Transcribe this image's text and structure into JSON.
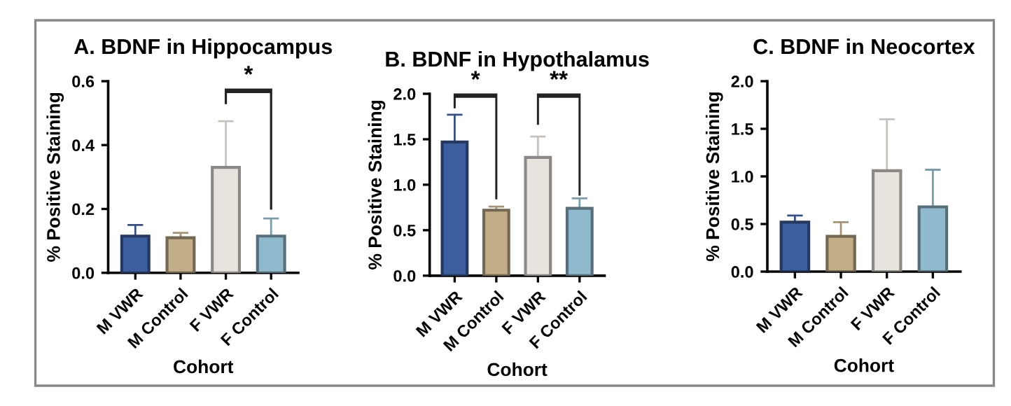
{
  "chart_data": [
    {
      "type": "bar",
      "title": "A. BDNF in Hippocampus",
      "xlabel": "Cohort",
      "ylabel": "% Positive Staining",
      "categories": [
        "M VWR",
        "M Control",
        "F VWR",
        "F Control"
      ],
      "values": [
        0.115,
        0.11,
        0.33,
        0.115
      ],
      "colors": [
        "#3d5e9e",
        "#c2ad88",
        "#e9e3dd",
        "#8fb9cd"
      ],
      "errors": [
        [
          0.115,
          0.15
        ],
        [
          0.11,
          0.125
        ],
        [
          0.33,
          0.475
        ],
        [
          0.115,
          0.17
        ]
      ],
      "ylim": [
        0,
        0.6
      ],
      "yticks": [
        {
          "value": 0,
          "label": "0.0"
        },
        0.2,
        0.4,
        0.6
      ],
      "grid": false,
      "legend": false,
      "annotations": [
        "*"
      ]
    },
    {
      "type": "bar",
      "title": "B. BDNF in Hypothalamus",
      "xlabel": "Cohort",
      "ylabel": "% Positive Staining",
      "categories": [
        "M VWR",
        "M Control",
        "F VWR",
        "F Control"
      ],
      "values": [
        1.47,
        0.72,
        1.3,
        0.74
      ],
      "colors": [
        "#3d5e9e",
        "#c2ad88",
        "#e9e3dd",
        "#8fb9cd"
      ],
      "errors": [
        [
          1.47,
          1.77
        ],
        [
          0.72,
          0.76
        ],
        [
          1.3,
          1.53
        ],
        [
          0.74,
          0.85
        ]
      ],
      "ylim": [
        0,
        2.0
      ],
      "yticks": [
        {
          "value": 0,
          "label": "0.0"
        },
        0.5,
        {
          "value": 1,
          "label": "1.0"
        },
        1.5,
        {
          "value": 2,
          "label": "2.0"
        }
      ],
      "grid": false,
      "legend": false,
      "annotations": [
        "*",
        "**"
      ]
    },
    {
      "type": "bar",
      "title": "C. BDNF in Neocortex",
      "xlabel": "Cohort",
      "ylabel": "% Positive Staining",
      "categories": [
        "M VWR",
        "M Control",
        "F VWR",
        "F Control"
      ],
      "values": [
        0.52,
        0.37,
        1.06,
        0.68
      ],
      "colors": [
        "#3d5e9e",
        "#c2ad88",
        "#e9e3dd",
        "#8fb9cd"
      ],
      "errors": [
        [
          0.52,
          0.59
        ],
        [
          0.37,
          0.52
        ],
        [
          1.06,
          1.6
        ],
        [
          0.68,
          1.07
        ]
      ],
      "ylim": [
        0,
        2.0
      ],
      "yticks": [
        {
          "value": 0,
          "label": "0.0"
        },
        0.5,
        {
          "value": 1,
          "label": "1.0"
        },
        1.5,
        {
          "value": 2,
          "label": "2.0"
        }
      ],
      "grid": false,
      "legend": false
    }
  ]
}
